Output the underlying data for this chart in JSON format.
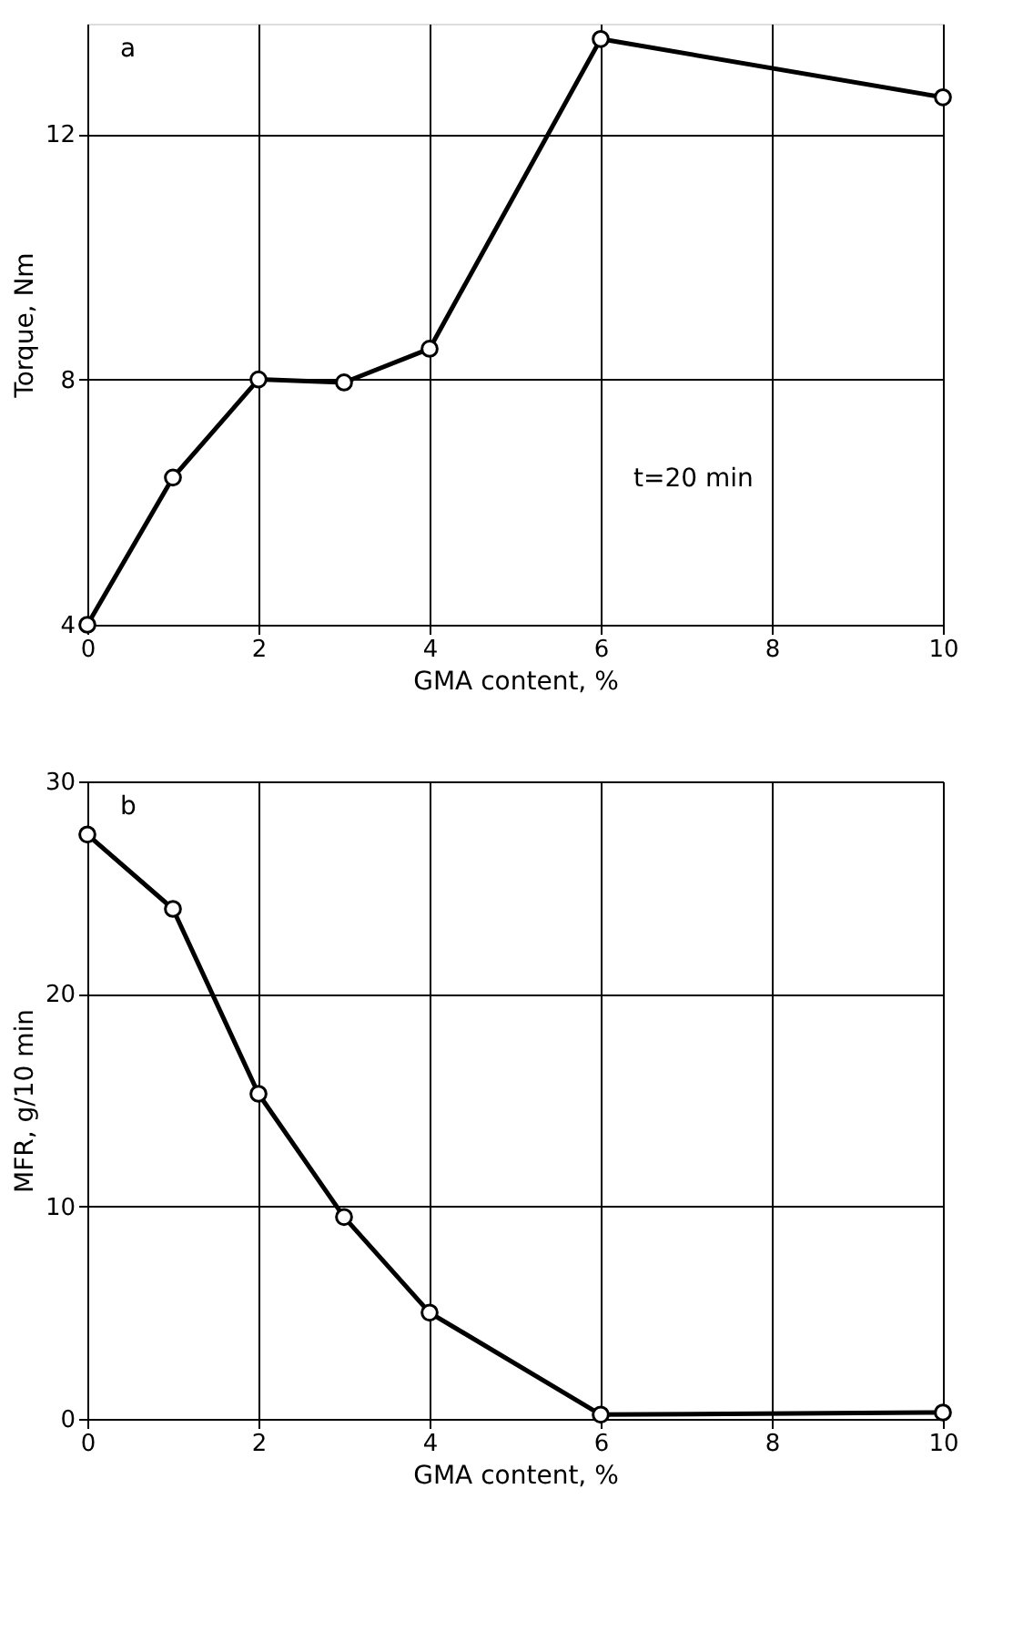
{
  "chart_data": [
    {
      "type": "line",
      "x": [
        0,
        1,
        2,
        3,
        4,
        6,
        10
      ],
      "values": [
        4,
        6.4,
        8,
        7.95,
        8.5,
        13.55,
        12.6
      ],
      "xlabel": "GMA content, %",
      "ylabel": "Torque, Nm",
      "xlim": [
        0,
        10
      ],
      "xticks": [
        0,
        2,
        4,
        6,
        8,
        10
      ],
      "ylim": [
        4,
        13.8
      ],
      "yticks": [
        4,
        8,
        12
      ],
      "grid": true,
      "marker": "circle",
      "color": "#000000",
      "annotations": [
        "a",
        "t=20 min"
      ]
    },
    {
      "type": "line",
      "x": [
        0,
        1,
        2,
        3,
        4,
        6,
        10
      ],
      "values": [
        27.5,
        24,
        15.3,
        9.5,
        5,
        0.2,
        0.3
      ],
      "xlabel": "GMA content, %",
      "ylabel": "MFR, g/10 min",
      "xlim": [
        0,
        10
      ],
      "xticks": [
        0,
        2,
        4,
        6,
        8,
        10
      ],
      "ylim": [
        0,
        30
      ],
      "yticks": [
        0,
        10,
        20,
        30
      ],
      "grid": true,
      "marker": "circle",
      "color": "#000000",
      "annotations": [
        "b"
      ]
    }
  ]
}
